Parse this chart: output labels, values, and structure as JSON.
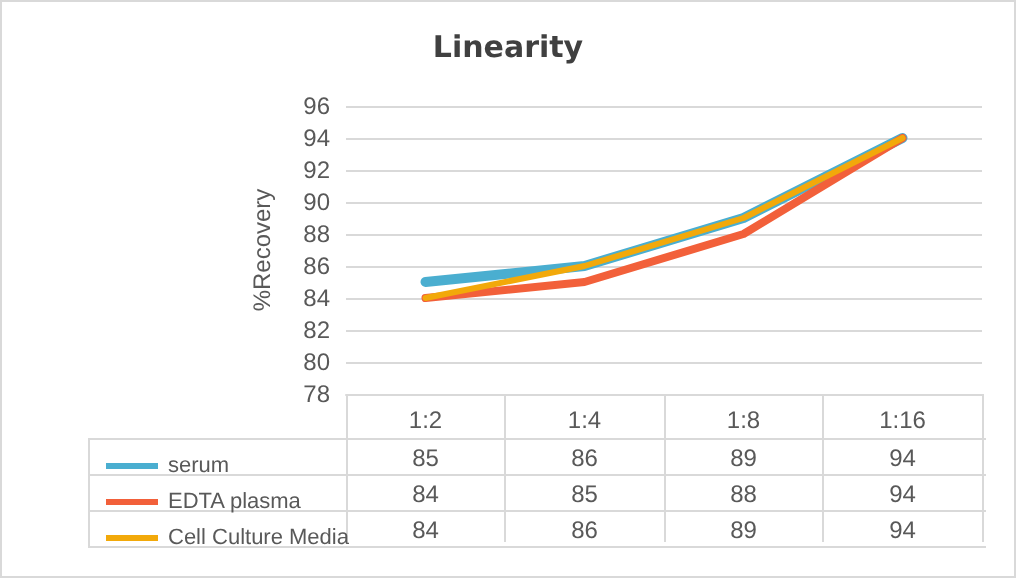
{
  "chart_data": {
    "type": "line",
    "title": "Linearity",
    "ylabel": "%Recovery",
    "categories": [
      "1:2",
      "1:4",
      "1:8",
      "1:16"
    ],
    "series": [
      {
        "name": "serum",
        "color": "#4aaed0",
        "values": [
          85,
          86,
          89,
          94
        ]
      },
      {
        "name": "EDTA plasma",
        "color": "#f2603a",
        "values": [
          84,
          85,
          88,
          94
        ]
      },
      {
        "name": "Cell Culture Media",
        "color": "#f2a90a",
        "values": [
          84,
          86,
          89,
          94
        ]
      }
    ],
    "ylim": [
      78,
      96
    ],
    "yticks": [
      78,
      80,
      82,
      84,
      86,
      88,
      90,
      92,
      94,
      96
    ],
    "grid": "y",
    "legend": "bottom",
    "data_labels": true,
    "marker": "none",
    "line_style": "solid"
  }
}
